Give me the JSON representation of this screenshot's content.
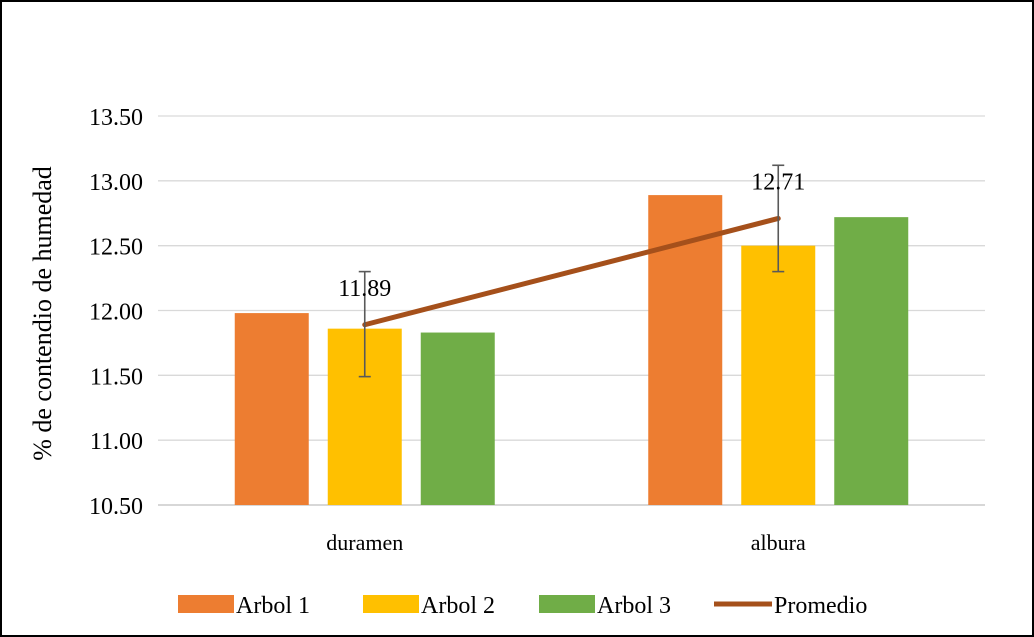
{
  "chart_data": {
    "type": "bar",
    "categories": [
      "duramen",
      "albura"
    ],
    "series": [
      {
        "name": "Arbol 1",
        "kind": "bar",
        "color": "#ED7D31",
        "values": [
          11.98,
          12.89
        ]
      },
      {
        "name": "Arbol 2",
        "kind": "bar",
        "color": "#FFC000",
        "values": [
          11.86,
          12.5
        ]
      },
      {
        "name": "Arbol 3",
        "kind": "bar",
        "color": "#70AD47",
        "values": [
          11.83,
          12.72
        ]
      },
      {
        "name": "Promedio",
        "kind": "line",
        "color": "#A5501B",
        "values": [
          11.89,
          12.71
        ],
        "data_labels": [
          "11.89",
          "12.71"
        ],
        "error_low": [
          11.49,
          12.3
        ],
        "error_high": [
          12.3,
          13.12
        ]
      }
    ],
    "ylabel": "% de contendio de humedad",
    "xlabel": "",
    "ylim": [
      10.5,
      13.5
    ],
    "yticks": [
      "10.50",
      "11.00",
      "11.50",
      "12.00",
      "12.50",
      "13.00",
      "13.50"
    ],
    "grid": true,
    "legend_position": "bottom"
  }
}
